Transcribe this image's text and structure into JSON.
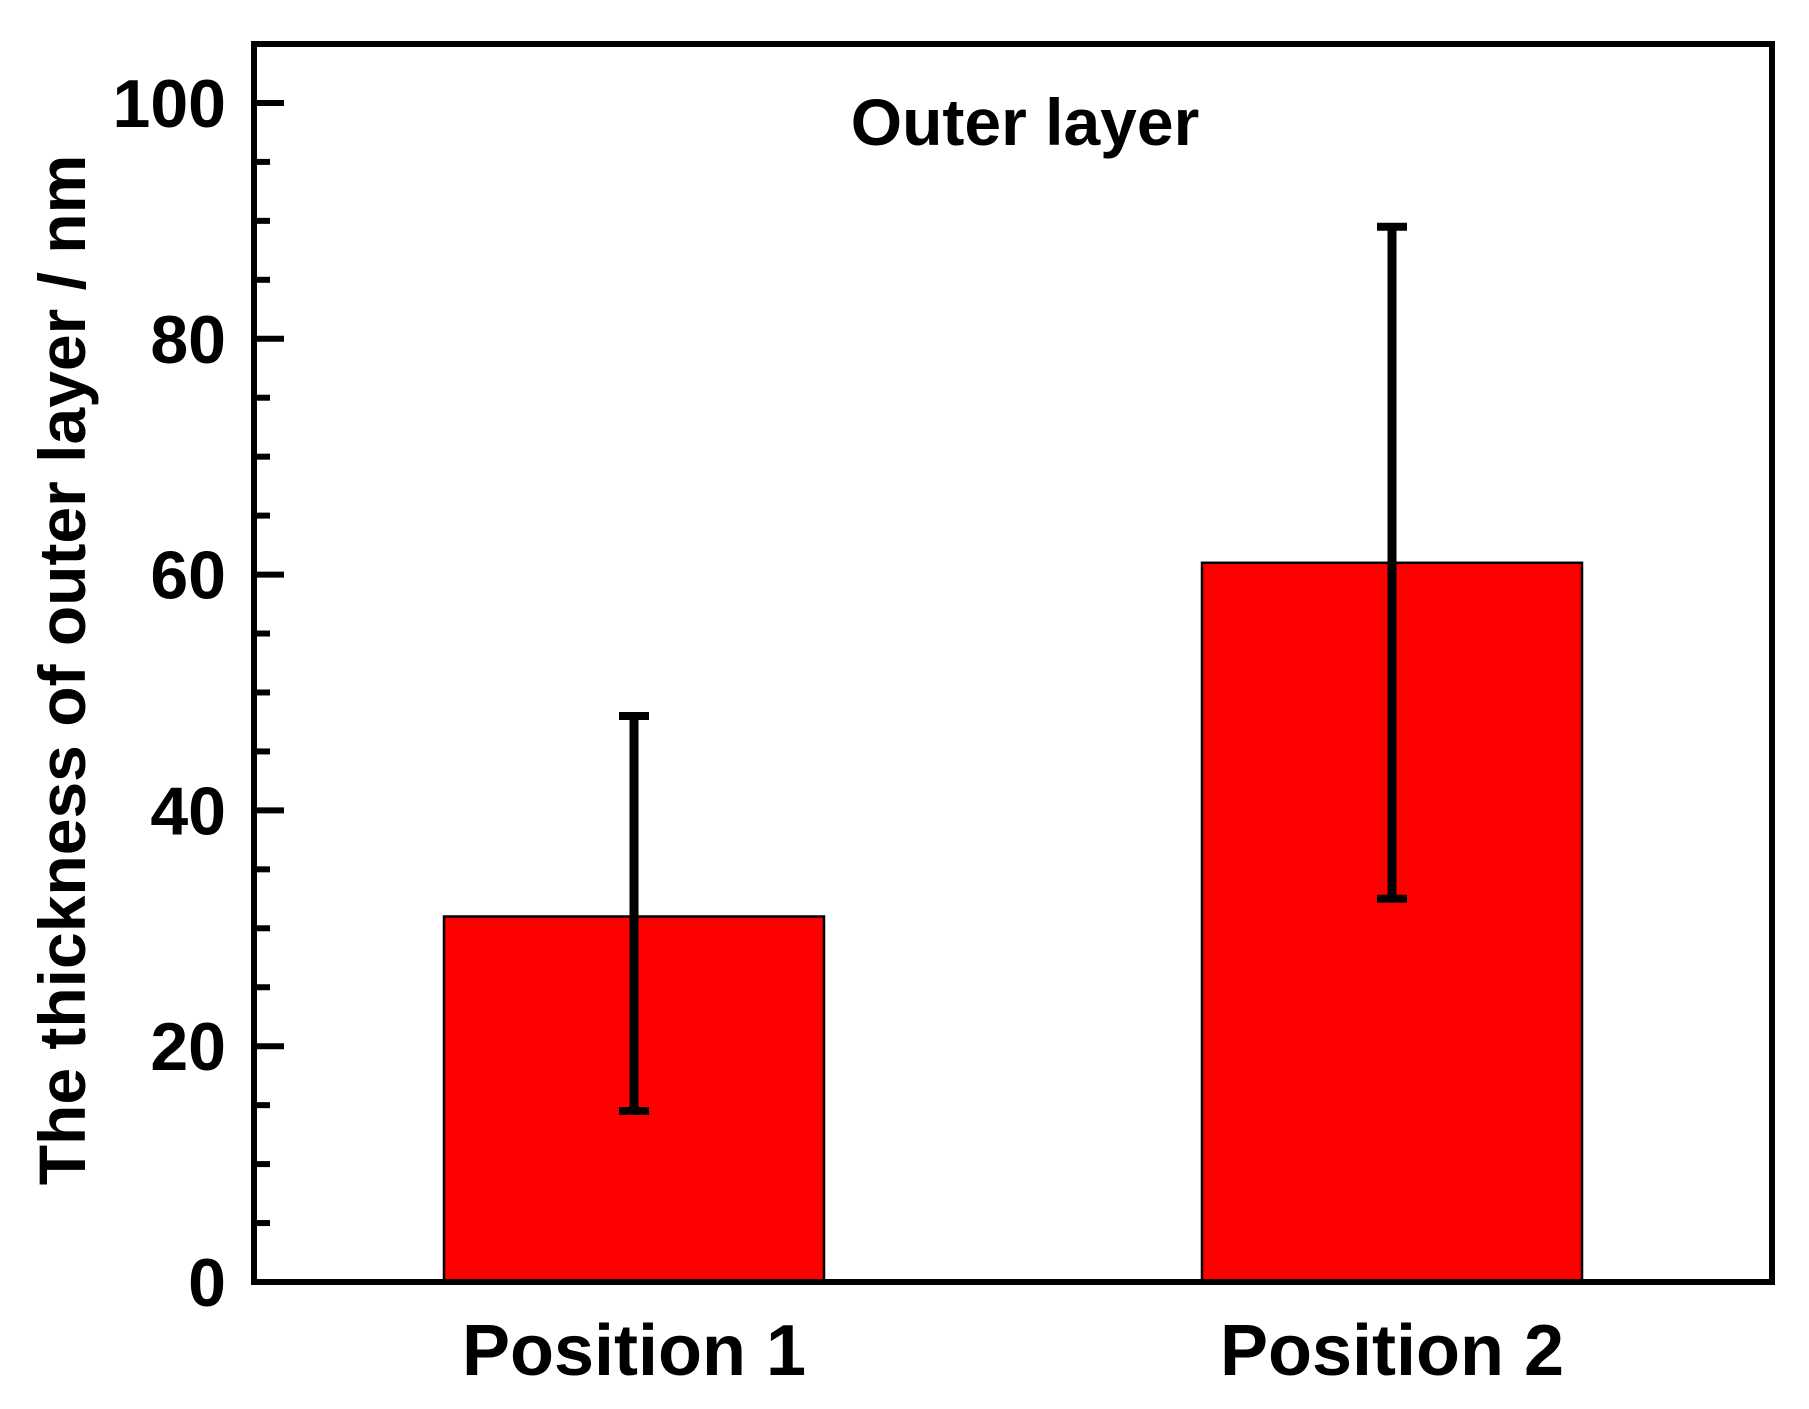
{
  "chart_data": {
    "type": "bar",
    "title": "Outer layer",
    "xlabel": "",
    "ylabel": "The thickness of outer layer / nm",
    "categories": [
      "Position 1",
      "Position 2"
    ],
    "values": [
      31,
      61
    ],
    "error_low": [
      14.5,
      32.5
    ],
    "error_high": [
      48,
      89.5
    ],
    "ylim": [
      0,
      105
    ],
    "yticks": [
      0,
      20,
      40,
      60,
      80,
      100
    ],
    "ytick_labels": [
      "0",
      "20",
      "40",
      "60",
      "80",
      "100"
    ],
    "grid": false,
    "legend": "none",
    "bar_color": "#ff0000",
    "error_bar_color": "#000000"
  }
}
